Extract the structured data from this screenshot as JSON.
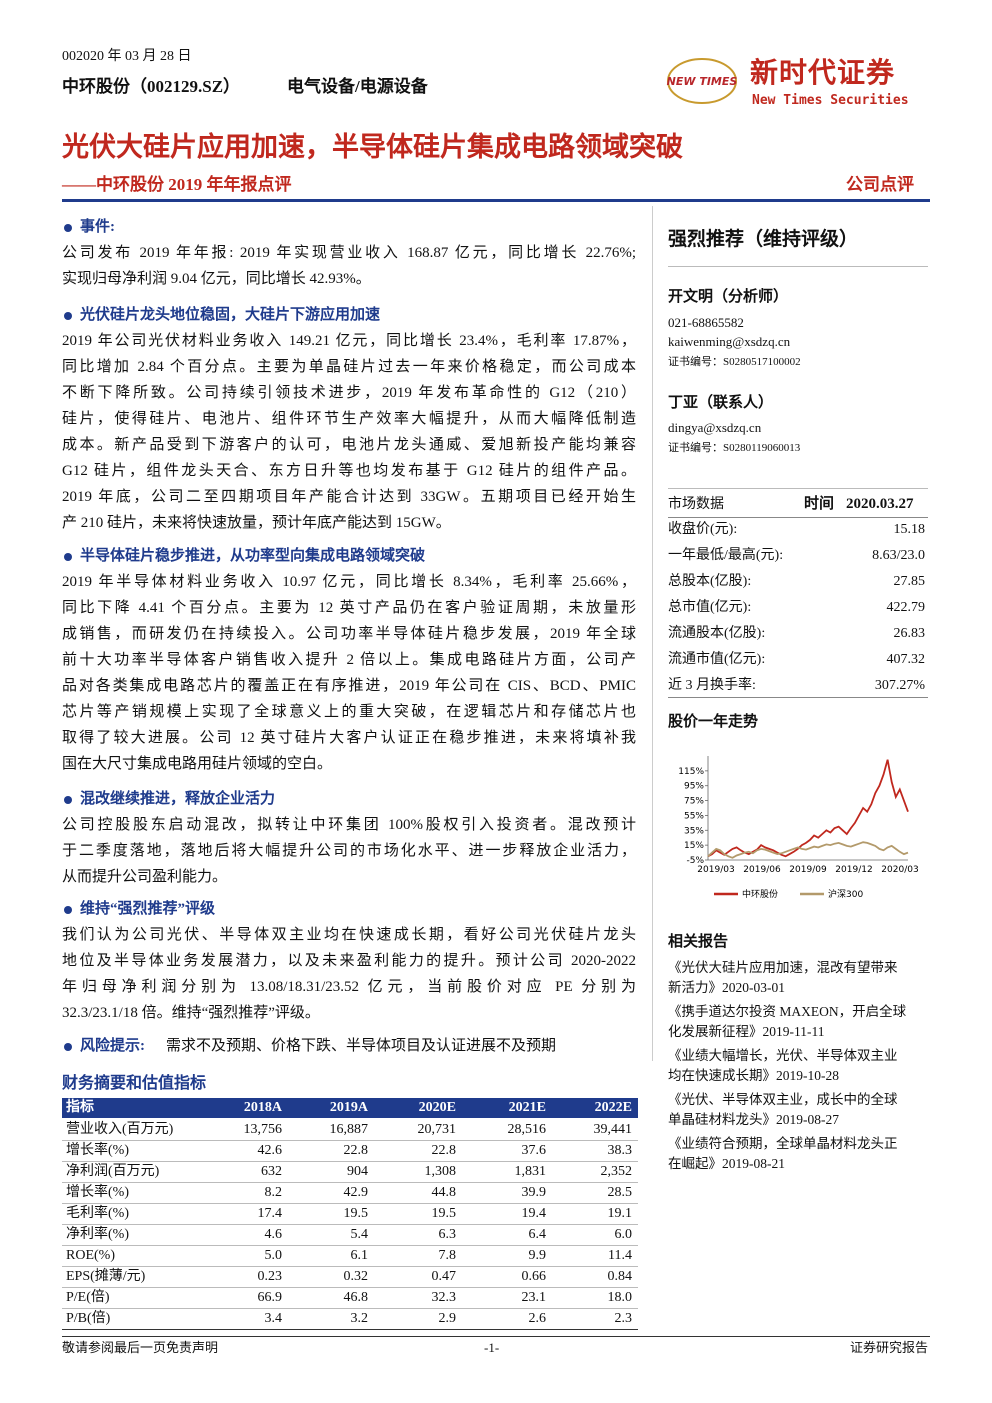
{
  "header": {
    "date": "002020 年 03 月 28 日",
    "company": "中环股份（002129.SZ）",
    "industry": "电气设备/电源设备",
    "logo_text": "NEW TIMES",
    "brand_cn": "新时代证券",
    "brand_en": "New Times Securities"
  },
  "title": "光伏大硅片应用加速，半导体硅片集成电路领域突破",
  "subtitle": "——中环股份 2019 年年报点评",
  "report_type": "公司点评",
  "sections": [
    {
      "heading": "事件:",
      "lines": [
        "公司发布 2019 年年报: 2019 年实现营业收入 168.87 亿元，同比增长 22.76%;",
        "实现归母净利润 9.04 亿元，同比增长 42.93%。"
      ]
    },
    {
      "heading": "光伏硅片龙头地位稳固，大硅片下游应用加速",
      "lines": [
        "2019 年公司光伏材料业务收入 149.21 亿元，同比增长 23.4%，毛利率 17.87%，",
        "同比增加 2.84 个百分点。主要为单晶硅片过去一年来价格稳定，而公司成本",
        "不断下降所致。公司持续引领技术进步，2019 年发布革命性的 G12（210）",
        "硅片，使得硅片、电池片、组件环节生产效率大幅提升，从而大幅降低制造",
        "成本。新产品受到下游客户的认可，电池片龙头通威、爱旭新投产能均兼容",
        "G12 硅片，组件龙头天合、东方日升等也均发布基于 G12 硅片的组件产品。",
        "2019 年底，公司二至四期项目年产能合计达到 33GW。五期项目已经开始生",
        "产 210 硅片，未来将快速放量，预计年底产能达到 15GW。"
      ]
    },
    {
      "heading": "半导体硅片稳步推进，从功率型向集成电路领域突破",
      "lines": [
        "2019 年半导体材料业务收入 10.97 亿元，同比增长 8.34%，毛利率 25.66%，",
        "同比下降 4.41 个百分点。主要为 12 英寸产品仍在客户验证周期，未放量形",
        "成销售，而研发仍在持续投入。公司功率半导体硅片稳步发展，2019 年全球",
        "前十大功率半导体客户销售收入提升 2 倍以上。集成电路硅片方面，公司产",
        "品对各类集成电路芯片的覆盖正在有序推进，2019 年公司在 CIS、BCD、PMIC",
        "芯片等产销规模上实现了全球意义上的重大突破，在逻辑芯片和存储芯片也",
        "取得了较大进展。公司 12 英寸硅片大客户认证正在稳步推进，未来将填补我",
        "国在大尺寸集成电路用硅片领域的空白。"
      ]
    },
    {
      "heading": "混改继续推进，释放企业活力",
      "lines": [
        "公司控股股东启动混改，拟转让中环集团 100%股权引入投资者。混改预计",
        "于二季度落地，落地后将大幅提升公司的市场化水平、进一步释放企业活力，",
        "从而提升公司盈利能力。"
      ]
    },
    {
      "heading": "维持“强烈推荐”评级",
      "lines": [
        "我们认为公司光伏、半导体双主业均在快速成长期，看好公司光伏硅片龙头",
        "地位及半导体业务发展潜力，以及未来盈利能力的提升。预计公司 2020-2022",
        "年归母净利润分别为 13.08/18.31/23.52 亿元，当前股价对应 PE 分别为",
        "32.3/23.1/18 倍。维持“强烈推荐”评级。"
      ]
    }
  ],
  "risk": {
    "heading": "风险提示:",
    "text": "需求不及预期、价格下跌、半导体项目及认证进展不及预期"
  },
  "table": {
    "title": "财务摘要和估值指标",
    "header": [
      "指标",
      "2018A",
      "2019A",
      "2020E",
      "2021E",
      "2022E"
    ],
    "rows": [
      [
        "营业收入(百万元)",
        "13,756",
        "16,887",
        "20,731",
        "28,516",
        "39,441"
      ],
      [
        "增长率(%)",
        "42.6",
        "22.8",
        "22.8",
        "37.6",
        "38.3"
      ],
      [
        "净利润(百万元)",
        "632",
        "904",
        "1,308",
        "1,831",
        "2,352"
      ],
      [
        "增长率(%)",
        "8.2",
        "42.9",
        "44.8",
        "39.9",
        "28.5"
      ],
      [
        "毛利率(%)",
        "17.4",
        "19.5",
        "19.5",
        "19.4",
        "19.1"
      ],
      [
        "净利率(%)",
        "4.6",
        "5.4",
        "6.3",
        "6.4",
        "6.0"
      ],
      [
        "ROE(%)",
        "5.0",
        "6.1",
        "7.8",
        "9.9",
        "11.4"
      ],
      [
        "EPS(摊薄/元)",
        "0.23",
        "0.32",
        "0.47",
        "0.66",
        "0.84"
      ],
      [
        "P/E(倍)",
        "66.9",
        "46.8",
        "32.3",
        "23.1",
        "18.0"
      ],
      [
        "P/B(倍)",
        "3.4",
        "3.2",
        "2.9",
        "2.6",
        "2.3"
      ]
    ]
  },
  "rating": "强烈推荐（维持评级）",
  "analysts": [
    {
      "name": "开文明（分析师）",
      "phone": "021-68865582",
      "email": "kaiwenming@xsdzq.cn",
      "cert": "证书编号：S0280517100002"
    },
    {
      "name": "丁亚（联系人）",
      "email": "dingya@xsdzq.cn",
      "cert": "证书编号：S0280119060013"
    }
  ],
  "market": {
    "title": "市场数据",
    "time_label": "时间",
    "time": "2020.03.27",
    "rows": [
      [
        "收盘价(元):",
        "15.18"
      ],
      [
        "一年最低/最高(元):",
        "8.63/23.0"
      ],
      [
        "总股本(亿股):",
        "27.85"
      ],
      [
        "总市值(亿元):",
        "422.79"
      ],
      [
        "流通股本(亿股):",
        "26.83"
      ],
      [
        "流通市值(亿元):",
        "407.32"
      ],
      [
        "近 3 月换手率:",
        "307.27%"
      ]
    ]
  },
  "price_chart": {
    "type": "line",
    "title": "股价一年走势",
    "xticks": [
      "2019/03",
      "2019/06",
      "2019/09",
      "2019/12",
      "2020/03"
    ],
    "ylim": [
      -5,
      135
    ],
    "yticks": [
      {
        "value": 115,
        "label": "115%"
      },
      {
        "value": 95,
        "label": "95%"
      },
      {
        "value": 75,
        "label": "75%"
      },
      {
        "value": 55,
        "label": "55%"
      },
      {
        "value": 35,
        "label": "35%"
      },
      {
        "value": 15,
        "label": "15%"
      },
      {
        "value": -5,
        "label": "-5%"
      }
    ],
    "series": [
      {
        "name": "中环股份",
        "color": "#c0281e",
        "values": [
          0,
          3,
          8,
          5,
          2,
          6,
          10,
          12,
          8,
          5,
          3,
          6,
          9,
          15,
          12,
          10,
          8,
          5,
          2,
          0,
          3,
          6,
          10,
          15,
          18,
          22,
          28,
          25,
          30,
          35,
          32,
          38,
          40,
          35,
          30,
          38,
          45,
          55,
          65,
          60,
          70,
          85,
          95,
          110,
          130,
          100,
          80,
          90,
          75,
          60
        ]
      },
      {
        "name": "沪深300",
        "color": "#b39a6b",
        "values": [
          0,
          5,
          10,
          8,
          3,
          0,
          -2,
          1,
          3,
          5,
          6,
          4,
          8,
          10,
          9,
          7,
          5,
          3,
          4,
          6,
          8,
          10,
          12,
          10,
          9,
          11,
          13,
          12,
          14,
          16,
          15,
          17,
          18,
          16,
          14,
          13,
          15,
          17,
          19,
          18,
          16,
          14,
          10,
          8,
          12,
          14,
          10,
          6,
          3,
          5
        ]
      }
    ]
  },
  "related": {
    "title": "相关报告",
    "items": [
      [
        "《光伏大硅片应用加速，混改有望带来",
        "新活力》2020-03-01"
      ],
      [
        "《携手道达尔投资 MAXEON，开启全球",
        "化发展新征程》2019-11-11"
      ],
      [
        "《业绩大幅增长，光伏、半导体双主业",
        "均在快速成长期》2019-10-28"
      ],
      [
        "《光伏、半导体双主业，成长中的全球",
        "单晶硅材料龙头》2019-08-27"
      ],
      [
        "《业绩符合预期，全球单晶材料龙头正",
        "在崛起》2019-08-21"
      ]
    ]
  },
  "footer": {
    "left": "敬请参阅最后一页免责声明",
    "page": "-1-",
    "right": "证券研究报告"
  }
}
